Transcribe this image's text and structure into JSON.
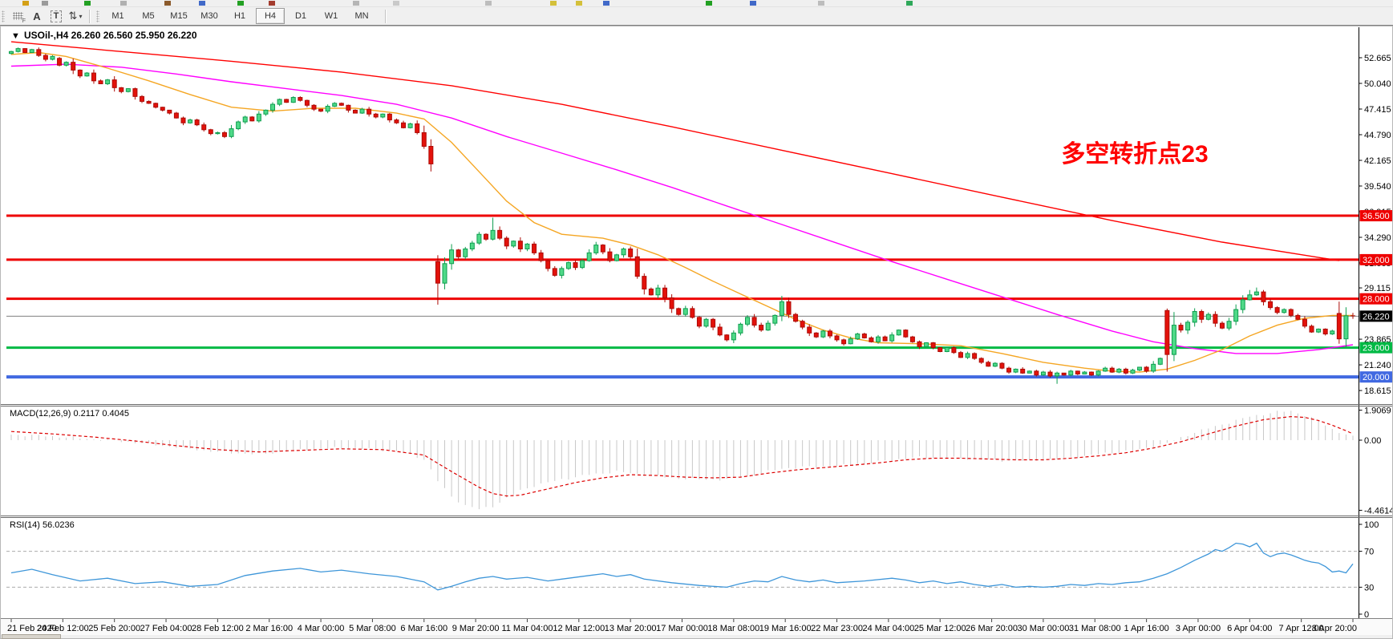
{
  "toolbar": {
    "icons": [
      {
        "name": "indicators-grid-icon",
        "glyph": "",
        "badge": "F"
      },
      {
        "name": "text-annotation-icon",
        "glyph": "A"
      },
      {
        "name": "text-label-icon",
        "glyph": "T"
      },
      {
        "name": "cycle-arrows-icon",
        "glyph": "⇅",
        "caret": "▾"
      }
    ],
    "timeframes": [
      "M1",
      "M5",
      "M15",
      "M30",
      "H1",
      "H4",
      "D1",
      "W1",
      "MN"
    ],
    "active_timeframe": "H4"
  },
  "window": {
    "dropdown_marker": "▼",
    "title_symbol": "USOil-,H4",
    "title_ohlc": "26.260 26.560 25.950 26.220"
  },
  "annotation": {
    "text": "多空转折点23",
    "color": "#FF0000"
  },
  "price_axis": {
    "ticks": [
      "52.665",
      "50.040",
      "47.415",
      "44.790",
      "42.165",
      "39.540",
      "36.915",
      "34.290",
      "31.665",
      "29.115",
      "23.865",
      "21.240",
      "18.615"
    ],
    "tick_values": [
      52.665,
      50.04,
      47.415,
      44.79,
      42.165,
      39.54,
      36.915,
      34.29,
      31.665,
      29.115,
      23.865,
      21.24,
      18.615
    ],
    "current_label": "26.220"
  },
  "time_axis": {
    "labels": [
      "21 Feb 2020",
      "24 Feb 12:00",
      "25 Feb 20:00",
      "27 Feb 04:00",
      "28 Feb 12:00",
      "2 Mar 16:00",
      "4 Mar 00:00",
      "5 Mar 08:00",
      "6 Mar 16:00",
      "9 Mar 20:00",
      "11 Mar 04:00",
      "12 Mar 12:00",
      "13 Mar 20:00",
      "17 Mar 00:00",
      "18 Mar 08:00",
      "19 Mar 16:00",
      "22 Mar 23:00",
      "24 Mar 04:00",
      "25 Mar 12:00",
      "26 Mar 20:00",
      "30 Mar 00:00",
      "31 Mar 08:00",
      "1 Apr 16:00",
      "3 Apr 00:00",
      "6 Apr 04:00",
      "7 Apr 12:00",
      "8 Apr 20:00"
    ]
  },
  "macd_panel": {
    "label": "MACD(12,26,9)",
    "main_value": "0.2117",
    "signal_value": "0.4045",
    "scale": [
      "1.9069",
      "0.00",
      "-4.4614"
    ],
    "scale_values": [
      1.9069,
      0.0,
      -4.4614
    ]
  },
  "rsi_panel": {
    "label": "RSI(14)",
    "value": "56.0236",
    "scale": [
      "100",
      "70",
      "30",
      "0"
    ],
    "scale_values": [
      100,
      70,
      30,
      0
    ]
  },
  "colors": {
    "up_fill": "#4fd988",
    "up_border": "#0e9e4f",
    "down_fill": "#e3120b",
    "down_border": "#ad0b06",
    "ma_fast": "#f5a623",
    "ma_mid": "#ff00ff",
    "ma_slow": "#ff0000",
    "level_red": "#ee0000",
    "level_green": "#00b944",
    "level_blue": "#4169e1",
    "current_line": "#808080",
    "current_label_bg": "#000000",
    "macd_hist": "#c8c8c8",
    "macd_signal": "#dd0000",
    "rsi_line": "#3e96d9",
    "rsi_levels": "#ababab"
  },
  "chart_data": {
    "type": "candlestick",
    "symbol": "USOil-",
    "timeframe": "H4",
    "title": "USOil-,H4 26.260 26.560 25.950 26.220",
    "last_bar_ohlc": {
      "open": 26.26,
      "high": 26.56,
      "low": 25.95,
      "close": 26.22
    },
    "current_price": 26.22,
    "visible_price_range": [
      17.2,
      55.6
    ],
    "levels": [
      {
        "price": 36.5,
        "label": "36.500",
        "color_key": "level_red",
        "width": 3
      },
      {
        "price": 32.0,
        "label": "32.000",
        "color_key": "level_red",
        "width": 3
      },
      {
        "price": 28.0,
        "label": "28.000",
        "color_key": "level_red",
        "width": 3
      },
      {
        "price": 23.0,
        "label": "23.000",
        "color_key": "level_green",
        "width": 3
      },
      {
        "price": 20.0,
        "label": "20.000",
        "color_key": "level_blue",
        "width": 4
      }
    ],
    "closes": [
      53.3,
      53.6,
      53.2,
      53.5,
      52.9,
      52.5,
      52.8,
      51.9,
      52.2,
      51.4,
      50.8,
      51.1,
      50.3,
      50.0,
      50.4,
      49.6,
      49.2,
      49.5,
      48.7,
      48.2,
      48.0,
      47.6,
      47.3,
      47.0,
      46.5,
      46.0,
      46.3,
      45.8,
      45.3,
      44.9,
      45.0,
      44.6,
      45.4,
      46.1,
      46.6,
      46.2,
      46.9,
      47.3,
      47.9,
      48.4,
      48.1,
      48.6,
      48.3,
      47.8,
      47.4,
      47.2,
      47.7,
      48.0,
      47.8,
      47.3,
      47.0,
      47.4,
      46.9,
      46.6,
      46.9,
      46.3,
      46.0,
      45.5,
      45.9,
      45.0,
      43.6,
      41.8,
      29.6,
      31.6,
      33.0,
      32.3,
      33.1,
      33.7,
      34.6,
      34.1,
      35.0,
      34.2,
      33.4,
      33.9,
      33.1,
      33.6,
      32.7,
      31.9,
      31.1,
      30.4,
      31.1,
      31.7,
      31.2,
      31.9,
      32.7,
      33.5,
      32.8,
      31.9,
      32.5,
      33.1,
      32.3,
      30.3,
      29.0,
      28.4,
      29.1,
      28.1,
      27.0,
      26.4,
      27.0,
      26.1,
      25.2,
      25.9,
      25.1,
      24.3,
      23.8,
      24.5,
      25.4,
      26.1,
      25.3,
      24.8,
      25.5,
      26.3,
      27.7,
      26.4,
      25.7,
      25.1,
      24.5,
      24.1,
      24.7,
      24.2,
      23.8,
      23.4,
      23.9,
      24.4,
      24.0,
      23.6,
      24.1,
      23.7,
      24.3,
      24.8,
      24.1,
      23.6,
      23.1,
      23.5,
      23.0,
      22.6,
      23.0,
      22.5,
      22.0,
      22.4,
      21.9,
      21.5,
      21.1,
      21.4,
      20.9,
      20.5,
      20.8,
      20.4,
      20.6,
      20.2,
      20.5,
      20.1,
      20.4,
      20.2,
      20.6,
      20.3,
      20.5,
      20.2,
      20.6,
      20.9,
      20.5,
      20.8,
      20.4,
      20.7,
      21.0,
      20.6,
      21.3,
      21.9,
      22.3,
      25.3,
      24.8,
      25.6,
      26.7,
      25.9,
      26.4,
      25.5,
      25.0,
      25.7,
      26.9,
      27.9,
      28.4,
      28.7,
      27.7,
      27.1,
      26.6,
      26.9,
      26.3,
      25.9,
      25.2,
      24.6,
      24.9,
      24.4,
      24.7,
      23.9,
      26.26,
      26.22
    ],
    "open_overrides": {
      "0": 53.1,
      "7": 52.6,
      "62": 31.8,
      "168": 26.8,
      "193": 26.5
    },
    "wick_overrides": {
      "62": {
        "low": 27.4
      },
      "70": {
        "high": 36.3
      },
      "112": {
        "high": 28.3
      },
      "152": {
        "low": 19.3
      },
      "168": {
        "high": 27.0
      },
      "180": {
        "high": 28.9
      },
      "181": {
        "high": 29.15
      },
      "193": {
        "low": 23.4
      },
      "195": {
        "high": 26.56,
        "low": 25.95
      }
    },
    "ma_fast_points": [
      [
        0,
        53.0
      ],
      [
        4,
        53.2
      ],
      [
        8,
        52.8
      ],
      [
        14,
        51.6
      ],
      [
        20,
        50.3
      ],
      [
        26,
        48.9
      ],
      [
        32,
        47.6
      ],
      [
        38,
        47.2
      ],
      [
        44,
        47.5
      ],
      [
        50,
        47.5
      ],
      [
        56,
        47.0
      ],
      [
        60,
        46.4
      ],
      [
        64,
        44.0
      ],
      [
        68,
        41.0
      ],
      [
        72,
        38.0
      ],
      [
        76,
        35.8
      ],
      [
        80,
        34.6
      ],
      [
        86,
        34.2
      ],
      [
        90,
        33.5
      ],
      [
        94,
        32.5
      ],
      [
        98,
        31.2
      ],
      [
        102,
        29.8
      ],
      [
        106,
        28.5
      ],
      [
        110,
        27.2
      ],
      [
        114,
        25.9
      ],
      [
        118,
        24.8
      ],
      [
        122,
        24.0
      ],
      [
        126,
        23.5
      ],
      [
        132,
        23.4
      ],
      [
        138,
        23.2
      ],
      [
        144,
        22.4
      ],
      [
        150,
        21.5
      ],
      [
        156,
        20.9
      ],
      [
        160,
        20.6
      ],
      [
        164,
        20.5
      ],
      [
        168,
        20.8
      ],
      [
        172,
        21.7
      ],
      [
        176,
        22.8
      ],
      [
        180,
        24.2
      ],
      [
        184,
        25.3
      ],
      [
        188,
        26.0
      ],
      [
        192,
        26.3
      ],
      [
        195,
        26.3
      ]
    ],
    "ma_mid_points": [
      [
        0,
        51.8
      ],
      [
        8,
        52.0
      ],
      [
        16,
        51.7
      ],
      [
        24,
        51.0
      ],
      [
        32,
        50.2
      ],
      [
        40,
        49.5
      ],
      [
        48,
        48.8
      ],
      [
        56,
        47.9
      ],
      [
        64,
        46.5
      ],
      [
        72,
        44.6
      ],
      [
        80,
        42.9
      ],
      [
        88,
        41.2
      ],
      [
        96,
        39.4
      ],
      [
        104,
        37.5
      ],
      [
        112,
        35.6
      ],
      [
        120,
        33.7
      ],
      [
        128,
        31.8
      ],
      [
        136,
        30.0
      ],
      [
        144,
        28.2
      ],
      [
        152,
        26.4
      ],
      [
        160,
        24.7
      ],
      [
        166,
        23.6
      ],
      [
        172,
        22.9
      ],
      [
        178,
        22.4
      ],
      [
        184,
        22.4
      ],
      [
        190,
        22.8
      ],
      [
        195,
        23.3
      ]
    ],
    "ma_slow_points": [
      [
        0,
        54.3
      ],
      [
        16,
        53.3
      ],
      [
        32,
        52.3
      ],
      [
        48,
        51.2
      ],
      [
        64,
        49.8
      ],
      [
        80,
        47.9
      ],
      [
        96,
        45.6
      ],
      [
        112,
        43.2
      ],
      [
        128,
        40.8
      ],
      [
        144,
        38.4
      ],
      [
        160,
        36.0
      ],
      [
        176,
        33.8
      ],
      [
        193,
        31.9
      ]
    ],
    "macd_hist_points": [
      [
        0,
        0.35
      ],
      [
        6,
        0.25
      ],
      [
        12,
        0.05
      ],
      [
        18,
        -0.15
      ],
      [
        24,
        -0.45
      ],
      [
        30,
        -0.75
      ],
      [
        36,
        -0.9
      ],
      [
        40,
        -0.7
      ],
      [
        44,
        -0.55
      ],
      [
        48,
        -0.5
      ],
      [
        52,
        -0.55
      ],
      [
        56,
        -0.7
      ],
      [
        60,
        -1.2
      ],
      [
        62,
        -2.6
      ],
      [
        64,
        -3.6
      ],
      [
        66,
        -4.15
      ],
      [
        68,
        -4.4
      ],
      [
        70,
        -4.2
      ],
      [
        72,
        -3.7
      ],
      [
        74,
        -3.2
      ],
      [
        76,
        -2.9
      ],
      [
        80,
        -2.5
      ],
      [
        84,
        -2.2
      ],
      [
        88,
        -2.0
      ],
      [
        92,
        -2.2
      ],
      [
        96,
        -2.4
      ],
      [
        100,
        -2.5
      ],
      [
        104,
        -2.5
      ],
      [
        108,
        -2.2
      ],
      [
        112,
        -1.8
      ],
      [
        116,
        -1.7
      ],
      [
        120,
        -1.65
      ],
      [
        124,
        -1.5
      ],
      [
        128,
        -1.25
      ],
      [
        132,
        -1.1
      ],
      [
        136,
        -1.1
      ],
      [
        140,
        -1.2
      ],
      [
        144,
        -1.3
      ],
      [
        148,
        -1.3
      ],
      [
        152,
        -1.2
      ],
      [
        156,
        -1.0
      ],
      [
        160,
        -0.8
      ],
      [
        164,
        -0.6
      ],
      [
        168,
        -0.2
      ],
      [
        172,
        0.5
      ],
      [
        176,
        1.0
      ],
      [
        180,
        1.5
      ],
      [
        184,
        1.8
      ],
      [
        186,
        1.85
      ],
      [
        188,
        1.6
      ],
      [
        190,
        1.2
      ],
      [
        192,
        0.7
      ],
      [
        194,
        0.35
      ],
      [
        195,
        0.2117
      ]
    ],
    "macd_signal_points": [
      [
        0,
        0.55
      ],
      [
        6,
        0.4
      ],
      [
        12,
        0.2
      ],
      [
        18,
        -0.05
      ],
      [
        24,
        -0.35
      ],
      [
        30,
        -0.6
      ],
      [
        36,
        -0.75
      ],
      [
        42,
        -0.65
      ],
      [
        48,
        -0.55
      ],
      [
        54,
        -0.6
      ],
      [
        60,
        -0.95
      ],
      [
        64,
        -2.0
      ],
      [
        68,
        -3.0
      ],
      [
        70,
        -3.4
      ],
      [
        72,
        -3.55
      ],
      [
        74,
        -3.5
      ],
      [
        78,
        -3.1
      ],
      [
        82,
        -2.7
      ],
      [
        86,
        -2.4
      ],
      [
        90,
        -2.2
      ],
      [
        94,
        -2.25
      ],
      [
        98,
        -2.35
      ],
      [
        102,
        -2.4
      ],
      [
        106,
        -2.35
      ],
      [
        110,
        -2.1
      ],
      [
        114,
        -1.9
      ],
      [
        118,
        -1.75
      ],
      [
        122,
        -1.6
      ],
      [
        126,
        -1.45
      ],
      [
        130,
        -1.25
      ],
      [
        134,
        -1.15
      ],
      [
        138,
        -1.15
      ],
      [
        142,
        -1.2
      ],
      [
        146,
        -1.25
      ],
      [
        150,
        -1.25
      ],
      [
        154,
        -1.15
      ],
      [
        158,
        -1.0
      ],
      [
        162,
        -0.8
      ],
      [
        166,
        -0.5
      ],
      [
        170,
        -0.1
      ],
      [
        174,
        0.4
      ],
      [
        178,
        0.9
      ],
      [
        182,
        1.3
      ],
      [
        186,
        1.5
      ],
      [
        188,
        1.45
      ],
      [
        190,
        1.25
      ],
      [
        192,
        0.95
      ],
      [
        194,
        0.6
      ],
      [
        195,
        0.4045
      ]
    ],
    "rsi_points": [
      [
        0,
        46
      ],
      [
        3,
        50
      ],
      [
        6,
        44
      ],
      [
        10,
        37
      ],
      [
        14,
        40
      ],
      [
        18,
        34
      ],
      [
        22,
        36
      ],
      [
        26,
        31
      ],
      [
        30,
        33
      ],
      [
        34,
        43
      ],
      [
        38,
        48
      ],
      [
        42,
        51
      ],
      [
        45,
        47
      ],
      [
        48,
        49
      ],
      [
        52,
        45
      ],
      [
        56,
        42
      ],
      [
        60,
        36
      ],
      [
        62,
        27
      ],
      [
        64,
        31
      ],
      [
        66,
        36
      ],
      [
        68,
        40
      ],
      [
        70,
        42
      ],
      [
        72,
        39
      ],
      [
        75,
        41
      ],
      [
        78,
        37
      ],
      [
        80,
        39
      ],
      [
        84,
        43
      ],
      [
        86,
        45
      ],
      [
        88,
        42
      ],
      [
        90,
        44
      ],
      [
        92,
        39
      ],
      [
        96,
        35
      ],
      [
        100,
        32
      ],
      [
        104,
        30
      ],
      [
        106,
        34
      ],
      [
        108,
        37
      ],
      [
        110,
        36
      ],
      [
        112,
        42
      ],
      [
        114,
        38
      ],
      [
        116,
        36
      ],
      [
        118,
        38
      ],
      [
        120,
        35
      ],
      [
        124,
        37
      ],
      [
        128,
        40
      ],
      [
        130,
        38
      ],
      [
        132,
        35
      ],
      [
        134,
        37
      ],
      [
        136,
        34
      ],
      [
        138,
        36
      ],
      [
        140,
        33
      ],
      [
        142,
        31
      ],
      [
        144,
        33
      ],
      [
        146,
        30
      ],
      [
        148,
        31
      ],
      [
        150,
        30
      ],
      [
        152,
        31
      ],
      [
        154,
        33
      ],
      [
        156,
        32
      ],
      [
        158,
        34
      ],
      [
        160,
        33
      ],
      [
        162,
        35
      ],
      [
        164,
        36
      ],
      [
        166,
        40
      ],
      [
        168,
        45
      ],
      [
        170,
        52
      ],
      [
        172,
        60
      ],
      [
        174,
        67
      ],
      [
        175,
        72
      ],
      [
        176,
        70
      ],
      [
        177,
        74
      ],
      [
        178,
        79
      ],
      [
        179,
        78
      ],
      [
        180,
        75
      ],
      [
        181,
        79
      ],
      [
        182,
        68
      ],
      [
        183,
        64
      ],
      [
        184,
        67
      ],
      [
        185,
        68
      ],
      [
        186,
        66
      ],
      [
        187,
        63
      ],
      [
        188,
        60
      ],
      [
        189,
        58
      ],
      [
        190,
        57
      ],
      [
        191,
        53
      ],
      [
        192,
        47
      ],
      [
        193,
        48
      ],
      [
        194,
        46
      ],
      [
        195,
        56
      ]
    ]
  }
}
